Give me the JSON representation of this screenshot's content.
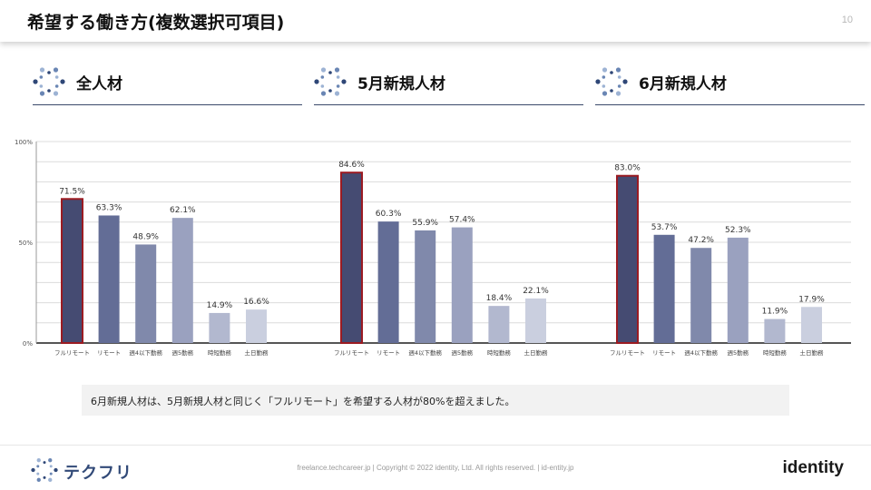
{
  "header": {
    "title": "希望する働き方(複数選択可項目)",
    "page_number": "10"
  },
  "sections": [
    {
      "label": "全人材"
    },
    {
      "label": "5月新規人材"
    },
    {
      "label": "6月新規人材"
    }
  ],
  "chart_data": {
    "type": "bar",
    "categories": [
      "フルリモート",
      "リモート",
      "週4以下勤務",
      "週5勤務",
      "時短勤務",
      "土日勤務"
    ],
    "ylim": [
      0,
      100
    ],
    "yticks": [
      "0%",
      "50%",
      "100%"
    ],
    "grid": true,
    "groups": [
      {
        "name": "全人材",
        "values": [
          71.5,
          63.3,
          48.9,
          62.1,
          14.9,
          16.6
        ],
        "labels": [
          "71.5%",
          "63.3%",
          "48.9%",
          "62.1%",
          "14.9%",
          "16.6%"
        ]
      },
      {
        "name": "5月新規人材",
        "values": [
          84.6,
          60.3,
          55.9,
          57.4,
          18.4,
          22.1
        ],
        "labels": [
          "84.6%",
          "60.3%",
          "55.9%",
          "57.4%",
          "18.4%",
          "22.1%"
        ]
      },
      {
        "name": "6月新規人材",
        "values": [
          83.0,
          53.7,
          47.2,
          52.3,
          11.9,
          17.9
        ],
        "labels": [
          "83.0%",
          "53.7%",
          "47.2%",
          "52.3%",
          "11.9%",
          "17.9%"
        ]
      }
    ],
    "bar_colors": [
      "#454b72",
      "#636d96",
      "#8089ab",
      "#9aa1bf",
      "#b2b8cf",
      "#cacfdf"
    ],
    "highlight_color": "#9b1b22"
  },
  "note": "6月新規人材は、5月新規人材と同じく「フルリモート」を希望する人材が80%を超えました。",
  "footer": {
    "brand_name": "テクフリ",
    "link1": "freelance.techcareer.jp",
    "copyright": " | Copyright © 2022 identity, Ltd. All rights reserved. | ",
    "link2": "id-entity.jp",
    "company_logo_text": "identity"
  }
}
